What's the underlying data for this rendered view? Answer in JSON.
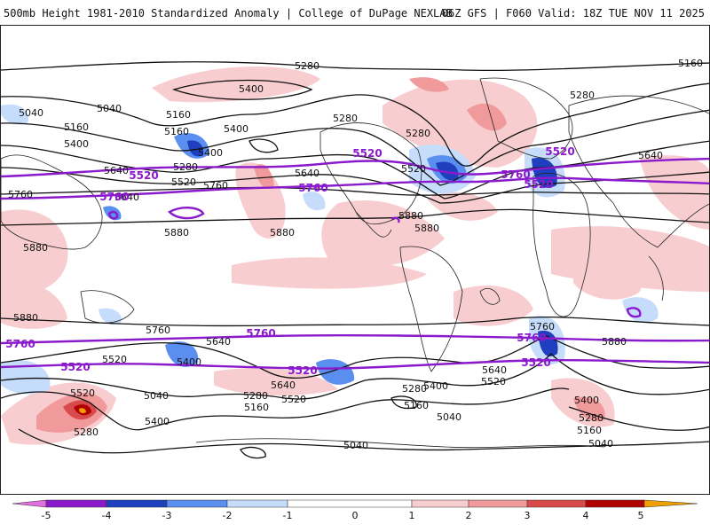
{
  "header": {
    "title": "500mb Height 1981-2010 Standardized Anomaly | College of DuPage NEXLAB",
    "run_info": "06Z GFS | F060 Valid: 18Z TUE NOV 11 2025"
  },
  "map": {
    "contour_labels_black": [
      "5280",
      "5160",
      "5400",
      "5040",
      "5280",
      "5160",
      "5400",
      "5280",
      "5160",
      "5640",
      "5400",
      "5280",
      "5520",
      "5760",
      "5640",
      "5880",
      "5880",
      "5880",
      "5280",
      "5520",
      "5880",
      "5880",
      "5760",
      "5160",
      "5400",
      "5640",
      "5040",
      "5880",
      "5760",
      "5640",
      "5400",
      "5280",
      "5520",
      "5040",
      "5520",
      "5400",
      "5640",
      "5280",
      "5160",
      "5760",
      "5520",
      "5640",
      "5280",
      "5040",
      "5160",
      "5040",
      "5400",
      "5160",
      "5040",
      "5880",
      "5400",
      "5640",
      "5520",
      "5280"
    ],
    "contour_labels_purple": [
      "5520",
      "5760",
      "5760",
      "5520",
      "5760",
      "5520",
      "5760",
      "5520",
      "5520",
      "5760",
      "5520",
      "5760",
      "5520"
    ],
    "colors": {
      "neg5": "#e070e0",
      "neg4": "#8a1acc",
      "neg3": "#1f3fbf",
      "neg2": "#5a8ff0",
      "neg1": "#c6dcfb",
      "zero": "#ffffff",
      "pos1": "#f8cdd0",
      "pos2": "#f19a9c",
      "pos3": "#d94b4b",
      "pos4": "#b00000",
      "pos5": "#f0a000",
      "contour_black": "#111111",
      "contour_purple": "#8a1acc",
      "land_outline": "#222222"
    }
  },
  "colorbar": {
    "ticks": [
      "-5",
      "-4",
      "-3",
      "-2",
      "-1",
      "0",
      "1",
      "2",
      "3",
      "4",
      "5"
    ]
  }
}
